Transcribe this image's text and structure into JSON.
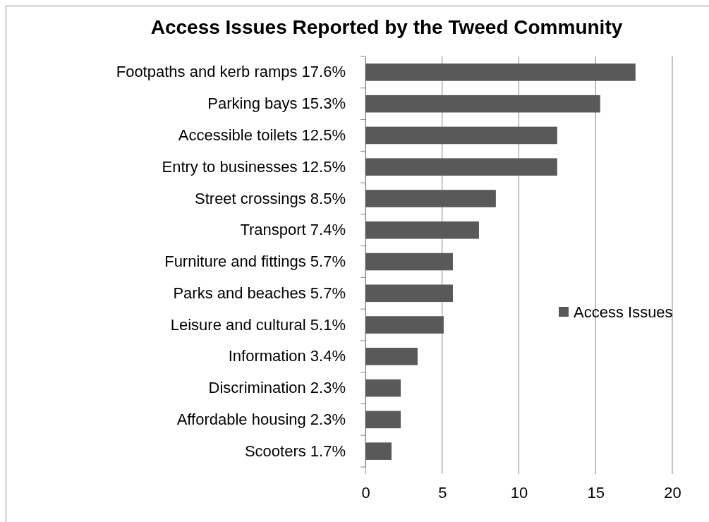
{
  "chart_data": {
    "type": "bar",
    "orientation": "horizontal",
    "title": "Access Issues Reported by the Tweed Community",
    "categories": [
      "Footpaths and kerb ramps 17.6%",
      "Parking bays 15.3%",
      "Accessible toilets 12.5%",
      "Entry to businesses 12.5%",
      "Street crossings 8.5%",
      "Transport 7.4%",
      "Furniture and fittings 5.7%",
      "Parks and beaches 5.7%",
      "Leisure and cultural 5.1%",
      "Information 3.4%",
      "Discrimination 2.3%",
      "Affordable housing 2.3%",
      "Scooters 1.7%"
    ],
    "series": [
      {
        "name": "Access Issues",
        "color": "#595959",
        "values": [
          17.6,
          15.3,
          12.5,
          12.5,
          8.5,
          7.4,
          5.7,
          5.7,
          5.1,
          3.4,
          2.3,
          2.3,
          1.7
        ]
      }
    ],
    "xlim": [
      0,
      20
    ],
    "xticks": [
      0,
      5,
      10,
      15,
      20
    ],
    "grid": "x",
    "legend": "right"
  }
}
